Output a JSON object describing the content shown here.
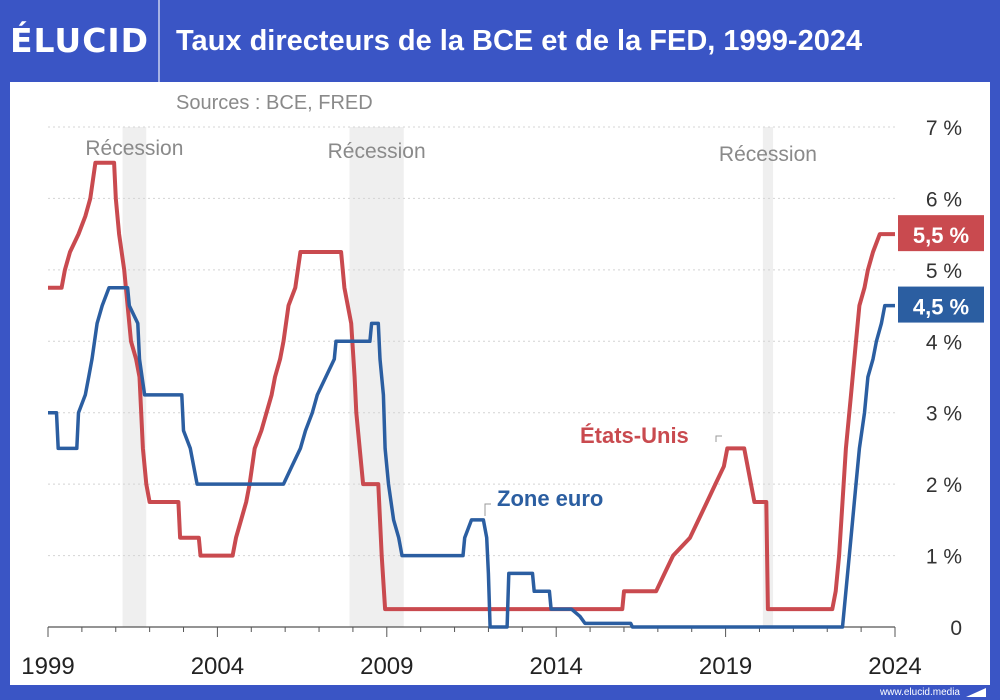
{
  "brand": "ÉLUCID",
  "title": "Taux directeurs de la BCE et de la FED, 1999-2024",
  "footer_url": "www.elucid.media",
  "chart_data": {
    "type": "line",
    "subtitle": "Sources : BCE, FRED",
    "xlim": [
      1999,
      2024
    ],
    "ylim": [
      0,
      7
    ],
    "x_ticks": [
      {
        "value": 1999,
        "label": "1999"
      },
      {
        "value": 2004,
        "label": "2004"
      },
      {
        "value": 2009,
        "label": "2009"
      },
      {
        "value": 2014,
        "label": "2014"
      },
      {
        "value": 2019,
        "label": "2019"
      },
      {
        "value": 2024,
        "label": "2024"
      }
    ],
    "y_ticks": [
      {
        "value": 0,
        "label": "0"
      },
      {
        "value": 1,
        "label": "1 %"
      },
      {
        "value": 2,
        "label": "2 %"
      },
      {
        "value": 3,
        "label": "3 %"
      },
      {
        "value": 4,
        "label": "4 %"
      },
      {
        "value": 5,
        "label": "5 %"
      },
      {
        "value": 6,
        "label": "6 %"
      },
      {
        "value": 7,
        "label": "7 %"
      }
    ],
    "grid": true,
    "recessions": [
      {
        "label": "Récession",
        "start": 2001.2,
        "end": 2001.9
      },
      {
        "label": "Récession",
        "start": 2007.9,
        "end": 2009.5
      },
      {
        "label": "Récession",
        "start": 2020.1,
        "end": 2020.4
      }
    ],
    "series": [
      {
        "name": "États-Unis",
        "color": "#c94a4f",
        "end_label": "5,5 %",
        "points": [
          [
            1999.0,
            4.75
          ],
          [
            1999.4,
            4.75
          ],
          [
            1999.5,
            5.0
          ],
          [
            1999.65,
            5.25
          ],
          [
            1999.9,
            5.5
          ],
          [
            2000.1,
            5.75
          ],
          [
            2000.25,
            6.0
          ],
          [
            2000.4,
            6.5
          ],
          [
            2000.95,
            6.5
          ],
          [
            2001.0,
            6.0
          ],
          [
            2001.1,
            5.5
          ],
          [
            2001.25,
            5.0
          ],
          [
            2001.35,
            4.5
          ],
          [
            2001.45,
            4.0
          ],
          [
            2001.6,
            3.75
          ],
          [
            2001.7,
            3.5
          ],
          [
            2001.75,
            3.0
          ],
          [
            2001.8,
            2.5
          ],
          [
            2001.9,
            2.0
          ],
          [
            2002.0,
            1.75
          ],
          [
            2002.85,
            1.75
          ],
          [
            2002.9,
            1.25
          ],
          [
            2003.45,
            1.25
          ],
          [
            2003.5,
            1.0
          ],
          [
            2004.45,
            1.0
          ],
          [
            2004.55,
            1.25
          ],
          [
            2004.7,
            1.5
          ],
          [
            2004.85,
            1.75
          ],
          [
            2004.95,
            2.0
          ],
          [
            2005.1,
            2.5
          ],
          [
            2005.3,
            2.75
          ],
          [
            2005.45,
            3.0
          ],
          [
            2005.6,
            3.25
          ],
          [
            2005.7,
            3.5
          ],
          [
            2005.85,
            3.75
          ],
          [
            2005.95,
            4.0
          ],
          [
            2006.1,
            4.5
          ],
          [
            2006.3,
            4.75
          ],
          [
            2006.45,
            5.25
          ],
          [
            2007.65,
            5.25
          ],
          [
            2007.75,
            4.75
          ],
          [
            2007.85,
            4.5
          ],
          [
            2007.95,
            4.25
          ],
          [
            2008.05,
            3.5
          ],
          [
            2008.1,
            3.0
          ],
          [
            2008.25,
            2.25
          ],
          [
            2008.3,
            2.0
          ],
          [
            2008.75,
            2.0
          ],
          [
            2008.8,
            1.5
          ],
          [
            2008.85,
            1.0
          ],
          [
            2008.95,
            0.25
          ],
          [
            2015.95,
            0.25
          ],
          [
            2016.0,
            0.5
          ],
          [
            2016.95,
            0.5
          ],
          [
            2017.2,
            0.75
          ],
          [
            2017.45,
            1.0
          ],
          [
            2017.95,
            1.25
          ],
          [
            2018.2,
            1.5
          ],
          [
            2018.45,
            1.75
          ],
          [
            2018.7,
            2.0
          ],
          [
            2018.95,
            2.25
          ],
          [
            2019.05,
            2.5
          ],
          [
            2019.55,
            2.5
          ],
          [
            2019.65,
            2.25
          ],
          [
            2019.75,
            2.0
          ],
          [
            2019.85,
            1.75
          ],
          [
            2020.2,
            1.75
          ],
          [
            2020.25,
            0.25
          ],
          [
            2022.15,
            0.25
          ],
          [
            2022.25,
            0.5
          ],
          [
            2022.35,
            1.0
          ],
          [
            2022.45,
            1.75
          ],
          [
            2022.55,
            2.5
          ],
          [
            2022.7,
            3.25
          ],
          [
            2022.85,
            4.0
          ],
          [
            2022.95,
            4.5
          ],
          [
            2023.1,
            4.75
          ],
          [
            2023.2,
            5.0
          ],
          [
            2023.35,
            5.25
          ],
          [
            2023.55,
            5.5
          ],
          [
            2024.0,
            5.5
          ]
        ]
      },
      {
        "name": "Zone euro",
        "color": "#2b5ea1",
        "end_label": "4,5 %",
        "points": [
          [
            1999.0,
            3.0
          ],
          [
            1999.25,
            3.0
          ],
          [
            1999.3,
            2.5
          ],
          [
            1999.85,
            2.5
          ],
          [
            1999.9,
            3.0
          ],
          [
            2000.1,
            3.25
          ],
          [
            2000.2,
            3.5
          ],
          [
            2000.3,
            3.75
          ],
          [
            2000.45,
            4.25
          ],
          [
            2000.6,
            4.5
          ],
          [
            2000.8,
            4.75
          ],
          [
            2001.35,
            4.75
          ],
          [
            2001.4,
            4.5
          ],
          [
            2001.65,
            4.25
          ],
          [
            2001.7,
            3.75
          ],
          [
            2001.85,
            3.25
          ],
          [
            2002.95,
            3.25
          ],
          [
            2003.0,
            2.75
          ],
          [
            2003.2,
            2.5
          ],
          [
            2003.4,
            2.0
          ],
          [
            2005.95,
            2.0
          ],
          [
            2006.2,
            2.25
          ],
          [
            2006.45,
            2.5
          ],
          [
            2006.6,
            2.75
          ],
          [
            2006.8,
            3.0
          ],
          [
            2006.95,
            3.25
          ],
          [
            2007.2,
            3.5
          ],
          [
            2007.45,
            3.75
          ],
          [
            2007.5,
            4.0
          ],
          [
            2008.5,
            4.0
          ],
          [
            2008.55,
            4.25
          ],
          [
            2008.75,
            4.25
          ],
          [
            2008.8,
            3.75
          ],
          [
            2008.9,
            3.25
          ],
          [
            2008.95,
            2.5
          ],
          [
            2009.05,
            2.0
          ],
          [
            2009.2,
            1.5
          ],
          [
            2009.35,
            1.25
          ],
          [
            2009.45,
            1.0
          ],
          [
            2011.25,
            1.0
          ],
          [
            2011.3,
            1.25
          ],
          [
            2011.5,
            1.5
          ],
          [
            2011.85,
            1.5
          ],
          [
            2011.95,
            1.25
          ],
          [
            2012.0,
            0.75
          ],
          [
            2012.05,
            0.0
          ],
          [
            2012.55,
            0.0
          ],
          [
            2012.6,
            0.75
          ],
          [
            2013.3,
            0.75
          ],
          [
            2013.35,
            0.5
          ],
          [
            2013.8,
            0.5
          ],
          [
            2013.85,
            0.25
          ],
          [
            2014.45,
            0.25
          ],
          [
            2014.7,
            0.15
          ],
          [
            2014.85,
            0.05
          ],
          [
            2015.0,
            0.05
          ],
          [
            2016.2,
            0.05
          ],
          [
            2016.25,
            0.0
          ],
          [
            2022.45,
            0.0
          ],
          [
            2022.55,
            0.5
          ],
          [
            2022.7,
            1.25
          ],
          [
            2022.85,
            2.0
          ],
          [
            2022.95,
            2.5
          ],
          [
            2023.1,
            3.0
          ],
          [
            2023.2,
            3.5
          ],
          [
            2023.35,
            3.75
          ],
          [
            2023.45,
            4.0
          ],
          [
            2023.6,
            4.25
          ],
          [
            2023.7,
            4.5
          ],
          [
            2024.0,
            4.5
          ]
        ]
      }
    ]
  }
}
